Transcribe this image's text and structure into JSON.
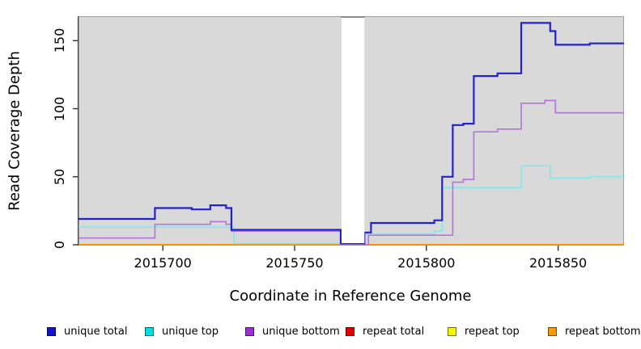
{
  "chart_data": {
    "type": "line",
    "subtype": "step-after-coverage",
    "title": "",
    "xlabel": "Coordinate in Reference Genome",
    "ylabel": "Read Coverage Depth",
    "xlim": [
      2015668,
      2015875
    ],
    "ylim": [
      0,
      168
    ],
    "x_ticks": [
      2015700,
      2015750,
      2015800,
      2015850
    ],
    "x_tick_labels": [
      "2015700",
      "2015750",
      "2015800",
      "2015850"
    ],
    "y_ticks": [
      0,
      50,
      100,
      150
    ],
    "y_tick_labels": [
      "0",
      "50",
      "100",
      "150"
    ],
    "grid": "off",
    "plot_background": "#d9d9d9",
    "plot_border_color": "#a0a0a0",
    "axis_line_color": "#4d4d4d",
    "tick_color": "#333333",
    "masked_region": {
      "x_start": 2015767.5,
      "x_end": 2015776.5,
      "fill": "#ffffff",
      "top_edge_color": "#8a8a8a"
    },
    "legend_position": "bottom",
    "draw_order": [
      "repeat total",
      "repeat top",
      "repeat bottom",
      "unique top",
      "unique bottom",
      "unique total"
    ],
    "series": [
      {
        "name": "unique total",
        "color": "#2222cc",
        "legend_color": "#1414cc",
        "width": 2.2,
        "points": [
          [
            2015668,
            19
          ],
          [
            2015697,
            27
          ],
          [
            2015711,
            26
          ],
          [
            2015718,
            29
          ],
          [
            2015724,
            27
          ],
          [
            2015726,
            11
          ],
          [
            2015767.5,
            1
          ],
          [
            2015776.5,
            9
          ],
          [
            2015779,
            16
          ],
          [
            2015803,
            18
          ],
          [
            2015806,
            50
          ],
          [
            2015810,
            88
          ],
          [
            2015814,
            89
          ],
          [
            2015818,
            124
          ],
          [
            2015827,
            126
          ],
          [
            2015836,
            163
          ],
          [
            2015847,
            157
          ],
          [
            2015849,
            147
          ],
          [
            2015862,
            148
          ],
          [
            2015875,
            148
          ]
        ]
      },
      {
        "name": "unique top",
        "color": "#87e8ea",
        "legend_color": "#00e0e0",
        "width": 1.7,
        "points": [
          [
            2015668,
            13
          ],
          [
            2015727,
            1
          ],
          [
            2015776.5,
            8
          ],
          [
            2015803,
            10
          ],
          [
            2015806,
            42
          ],
          [
            2015836,
            58
          ],
          [
            2015847,
            49
          ],
          [
            2015862,
            50
          ],
          [
            2015875,
            50
          ]
        ]
      },
      {
        "name": "unique bottom",
        "color": "#b577dd",
        "legend_color": "#9a30d0",
        "width": 1.7,
        "points": [
          [
            2015668,
            5
          ],
          [
            2015697,
            15
          ],
          [
            2015718,
            17
          ],
          [
            2015724,
            15
          ],
          [
            2015726,
            10
          ],
          [
            2015767.5,
            0
          ],
          [
            2015778,
            7
          ],
          [
            2015810,
            46
          ],
          [
            2015814,
            48
          ],
          [
            2015818,
            83
          ],
          [
            2015827,
            85
          ],
          [
            2015836,
            104
          ],
          [
            2015845,
            106
          ],
          [
            2015849,
            97
          ],
          [
            2015875,
            97
          ]
        ]
      },
      {
        "name": "repeat total",
        "color": "#d40000",
        "legend_color": "#e00000",
        "width": 1.5,
        "points": [
          [
            2015668,
            0
          ],
          [
            2015875,
            0
          ]
        ]
      },
      {
        "name": "repeat top",
        "color": "#f0f000",
        "legend_color": "#f5f500",
        "width": 1.5,
        "points": [
          [
            2015668,
            0
          ],
          [
            2015875,
            0
          ]
        ]
      },
      {
        "name": "repeat bottom",
        "color": "#ff8c00",
        "legend_color": "#f59b00",
        "width": 2,
        "points": [
          [
            2015668,
            0
          ],
          [
            2015875,
            0
          ]
        ]
      }
    ]
  },
  "labels": {
    "x_axis_title": "Coordinate in Reference Genome",
    "y_axis_title": "Read Coverage Depth"
  },
  "legend": {
    "entries": [
      {
        "label": "unique total"
      },
      {
        "label": "unique top"
      },
      {
        "label": "unique bottom"
      },
      {
        "label": "repeat total"
      },
      {
        "label": "repeat top"
      },
      {
        "label": "repeat bottom"
      }
    ]
  }
}
